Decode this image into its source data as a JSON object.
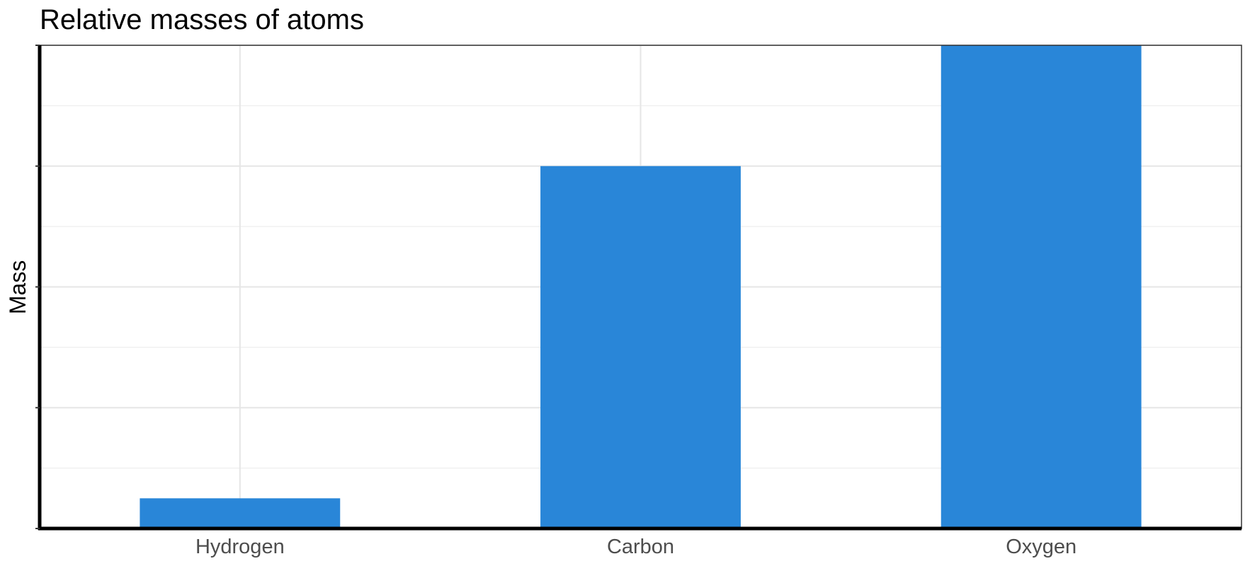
{
  "chart_data": {
    "type": "bar",
    "title": "Relative masses of atoms",
    "xlabel": "",
    "ylabel": "Mass",
    "categories": [
      "Hydrogen",
      "Carbon",
      "Oxygen"
    ],
    "values": [
      1,
      12,
      16
    ],
    "ylim": [
      0,
      16
    ],
    "y_major_ticks": [
      0,
      4,
      8,
      12,
      16
    ],
    "y_tick_labels_shown": false,
    "grid": true,
    "legend": "none",
    "bar_color": "#2986D8"
  }
}
